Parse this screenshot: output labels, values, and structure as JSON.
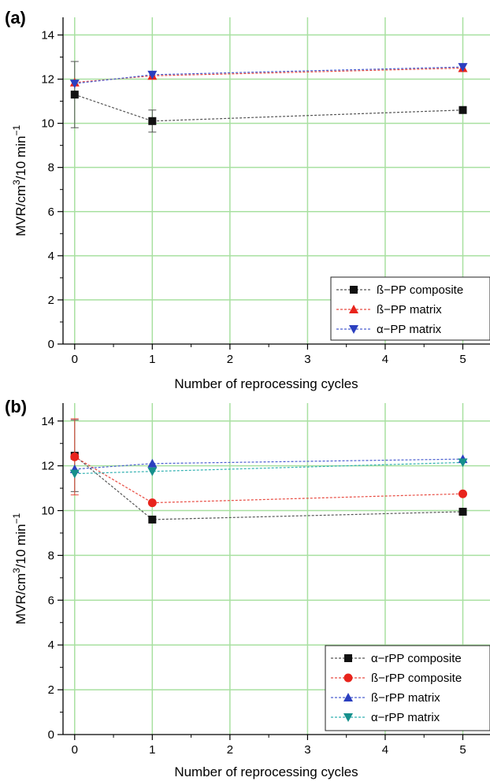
{
  "colors": {
    "grid": "#a8e0a0",
    "axis": "#000000",
    "black": "#111111",
    "red": "#e8241c",
    "blue": "#2b3fbf",
    "teal": "#16908c",
    "connector_gray": "#555555",
    "connector_red": "#e84a40",
    "connector_blue": "#4a5fd0",
    "connector_teal": "#30b0b0"
  },
  "chart_data": [
    {
      "panel_label": "(a)",
      "type": "line",
      "xlabel": "Number of reprocessing cycles",
      "ylabel_parts": {
        "base": "MVR/cm",
        "sup1": "3",
        "mid": "/10 min",
        "sup2": "−1"
      },
      "xlim": [
        -0.15,
        5.35
      ],
      "ylim": [
        0,
        14.8
      ],
      "x_ticks": [
        0,
        1,
        2,
        3,
        4,
        5
      ],
      "y_ticks": [
        0,
        2,
        4,
        6,
        8,
        10,
        12,
        14
      ],
      "x_tick_labels": [
        "0",
        "1",
        "2",
        "3",
        "4",
        "5"
      ],
      "y_tick_labels": [
        "0",
        "2",
        "4",
        "6",
        "8",
        "10",
        "12",
        "14"
      ],
      "grid": true,
      "legend_position": "lower-right",
      "series": [
        {
          "name": "ß−PP composite",
          "marker": "square",
          "color_key": "black",
          "line_color_key": "connector_gray",
          "x": [
            0,
            1,
            5
          ],
          "y": [
            11.3,
            10.1,
            10.6
          ],
          "err": [
            1.5,
            0.5,
            0
          ]
        },
        {
          "name": "ß−PP matrix",
          "marker": "triangle-up",
          "color_key": "red",
          "line_color_key": "connector_red",
          "x": [
            0,
            1,
            5
          ],
          "y": [
            11.85,
            12.15,
            12.5
          ],
          "err": [
            0,
            0,
            0
          ]
        },
        {
          "name": "α−PP matrix",
          "marker": "triangle-down",
          "color_key": "blue",
          "line_color_key": "connector_blue",
          "x": [
            0,
            1,
            5
          ],
          "y": [
            11.8,
            12.2,
            12.55
          ],
          "err": [
            0,
            0,
            0
          ]
        }
      ]
    },
    {
      "panel_label": "(b)",
      "type": "line",
      "xlabel": "Number of reprocessing cycles",
      "ylabel_parts": {
        "base": "MVR/cm",
        "sup1": "3",
        "mid": "/10 min",
        "sup2": "−1"
      },
      "xlim": [
        -0.15,
        5.35
      ],
      "ylim": [
        0,
        14.8
      ],
      "x_ticks": [
        0,
        1,
        2,
        3,
        4,
        5
      ],
      "y_ticks": [
        0,
        2,
        4,
        6,
        8,
        10,
        12,
        14
      ],
      "x_tick_labels": [
        "0",
        "1",
        "2",
        "3",
        "4",
        "5"
      ],
      "y_tick_labels": [
        "0",
        "2",
        "4",
        "6",
        "8",
        "10",
        "12",
        "14"
      ],
      "grid": true,
      "legend_position": "lower-right",
      "series": [
        {
          "name": "α−rPP composite",
          "marker": "square",
          "color_key": "black",
          "line_color_key": "connector_gray",
          "x": [
            0,
            1,
            5
          ],
          "y": [
            12.45,
            9.6,
            9.95
          ],
          "err": [
            1.6,
            0,
            0
          ]
        },
        {
          "name": "ß−rPP composite",
          "marker": "circle",
          "color_key": "red",
          "line_color_key": "connector_red",
          "x": [
            0,
            1,
            5
          ],
          "y": [
            12.4,
            10.35,
            10.75
          ],
          "err": [
            1.7,
            0,
            0
          ]
        },
        {
          "name": "ß−rPP matrix",
          "marker": "triangle-up",
          "color_key": "blue",
          "line_color_key": "connector_blue",
          "x": [
            0,
            1,
            5
          ],
          "y": [
            11.85,
            12.1,
            12.3
          ],
          "err": [
            0,
            0,
            0
          ]
        },
        {
          "name": "α−rPP matrix",
          "marker": "triangle-down",
          "color_key": "teal",
          "line_color_key": "connector_teal",
          "x": [
            0,
            1,
            5
          ],
          "y": [
            11.65,
            11.75,
            12.15
          ],
          "err": [
            0,
            0,
            0
          ]
        }
      ]
    }
  ]
}
